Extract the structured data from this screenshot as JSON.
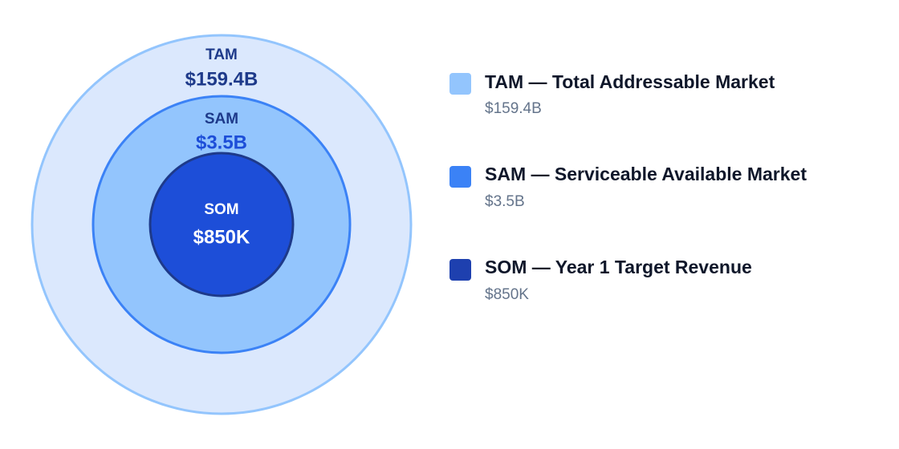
{
  "markets": [
    {
      "label": "TAM",
      "value": "$159.4B",
      "legend": "TAM — Total Addressable Market"
    },
    {
      "label": "SAM",
      "value": "$3.5B",
      "legend": "SAM — Serviceable Available Market"
    },
    {
      "label": "SOM",
      "value": "$850K",
      "legend": "SOM — Year 1 Target Revenue"
    }
  ]
}
